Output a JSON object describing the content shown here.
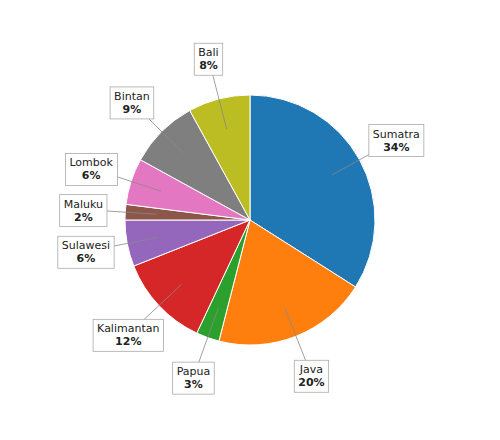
{
  "chart_data": {
    "type": "pie",
    "categories": [
      "Sumatra",
      "Java",
      "Papua",
      "Kalimantan",
      "Sulawesi",
      "Maluku",
      "Lombok",
      "Bintan",
      "Bali"
    ],
    "values": [
      34,
      20,
      3,
      12,
      6,
      2,
      6,
      9,
      8
    ],
    "value_labels": [
      "34%",
      "20%",
      "3%",
      "12%",
      "6%",
      "2%",
      "6%",
      "9%",
      "8%"
    ],
    "data_labels": true
  }
}
